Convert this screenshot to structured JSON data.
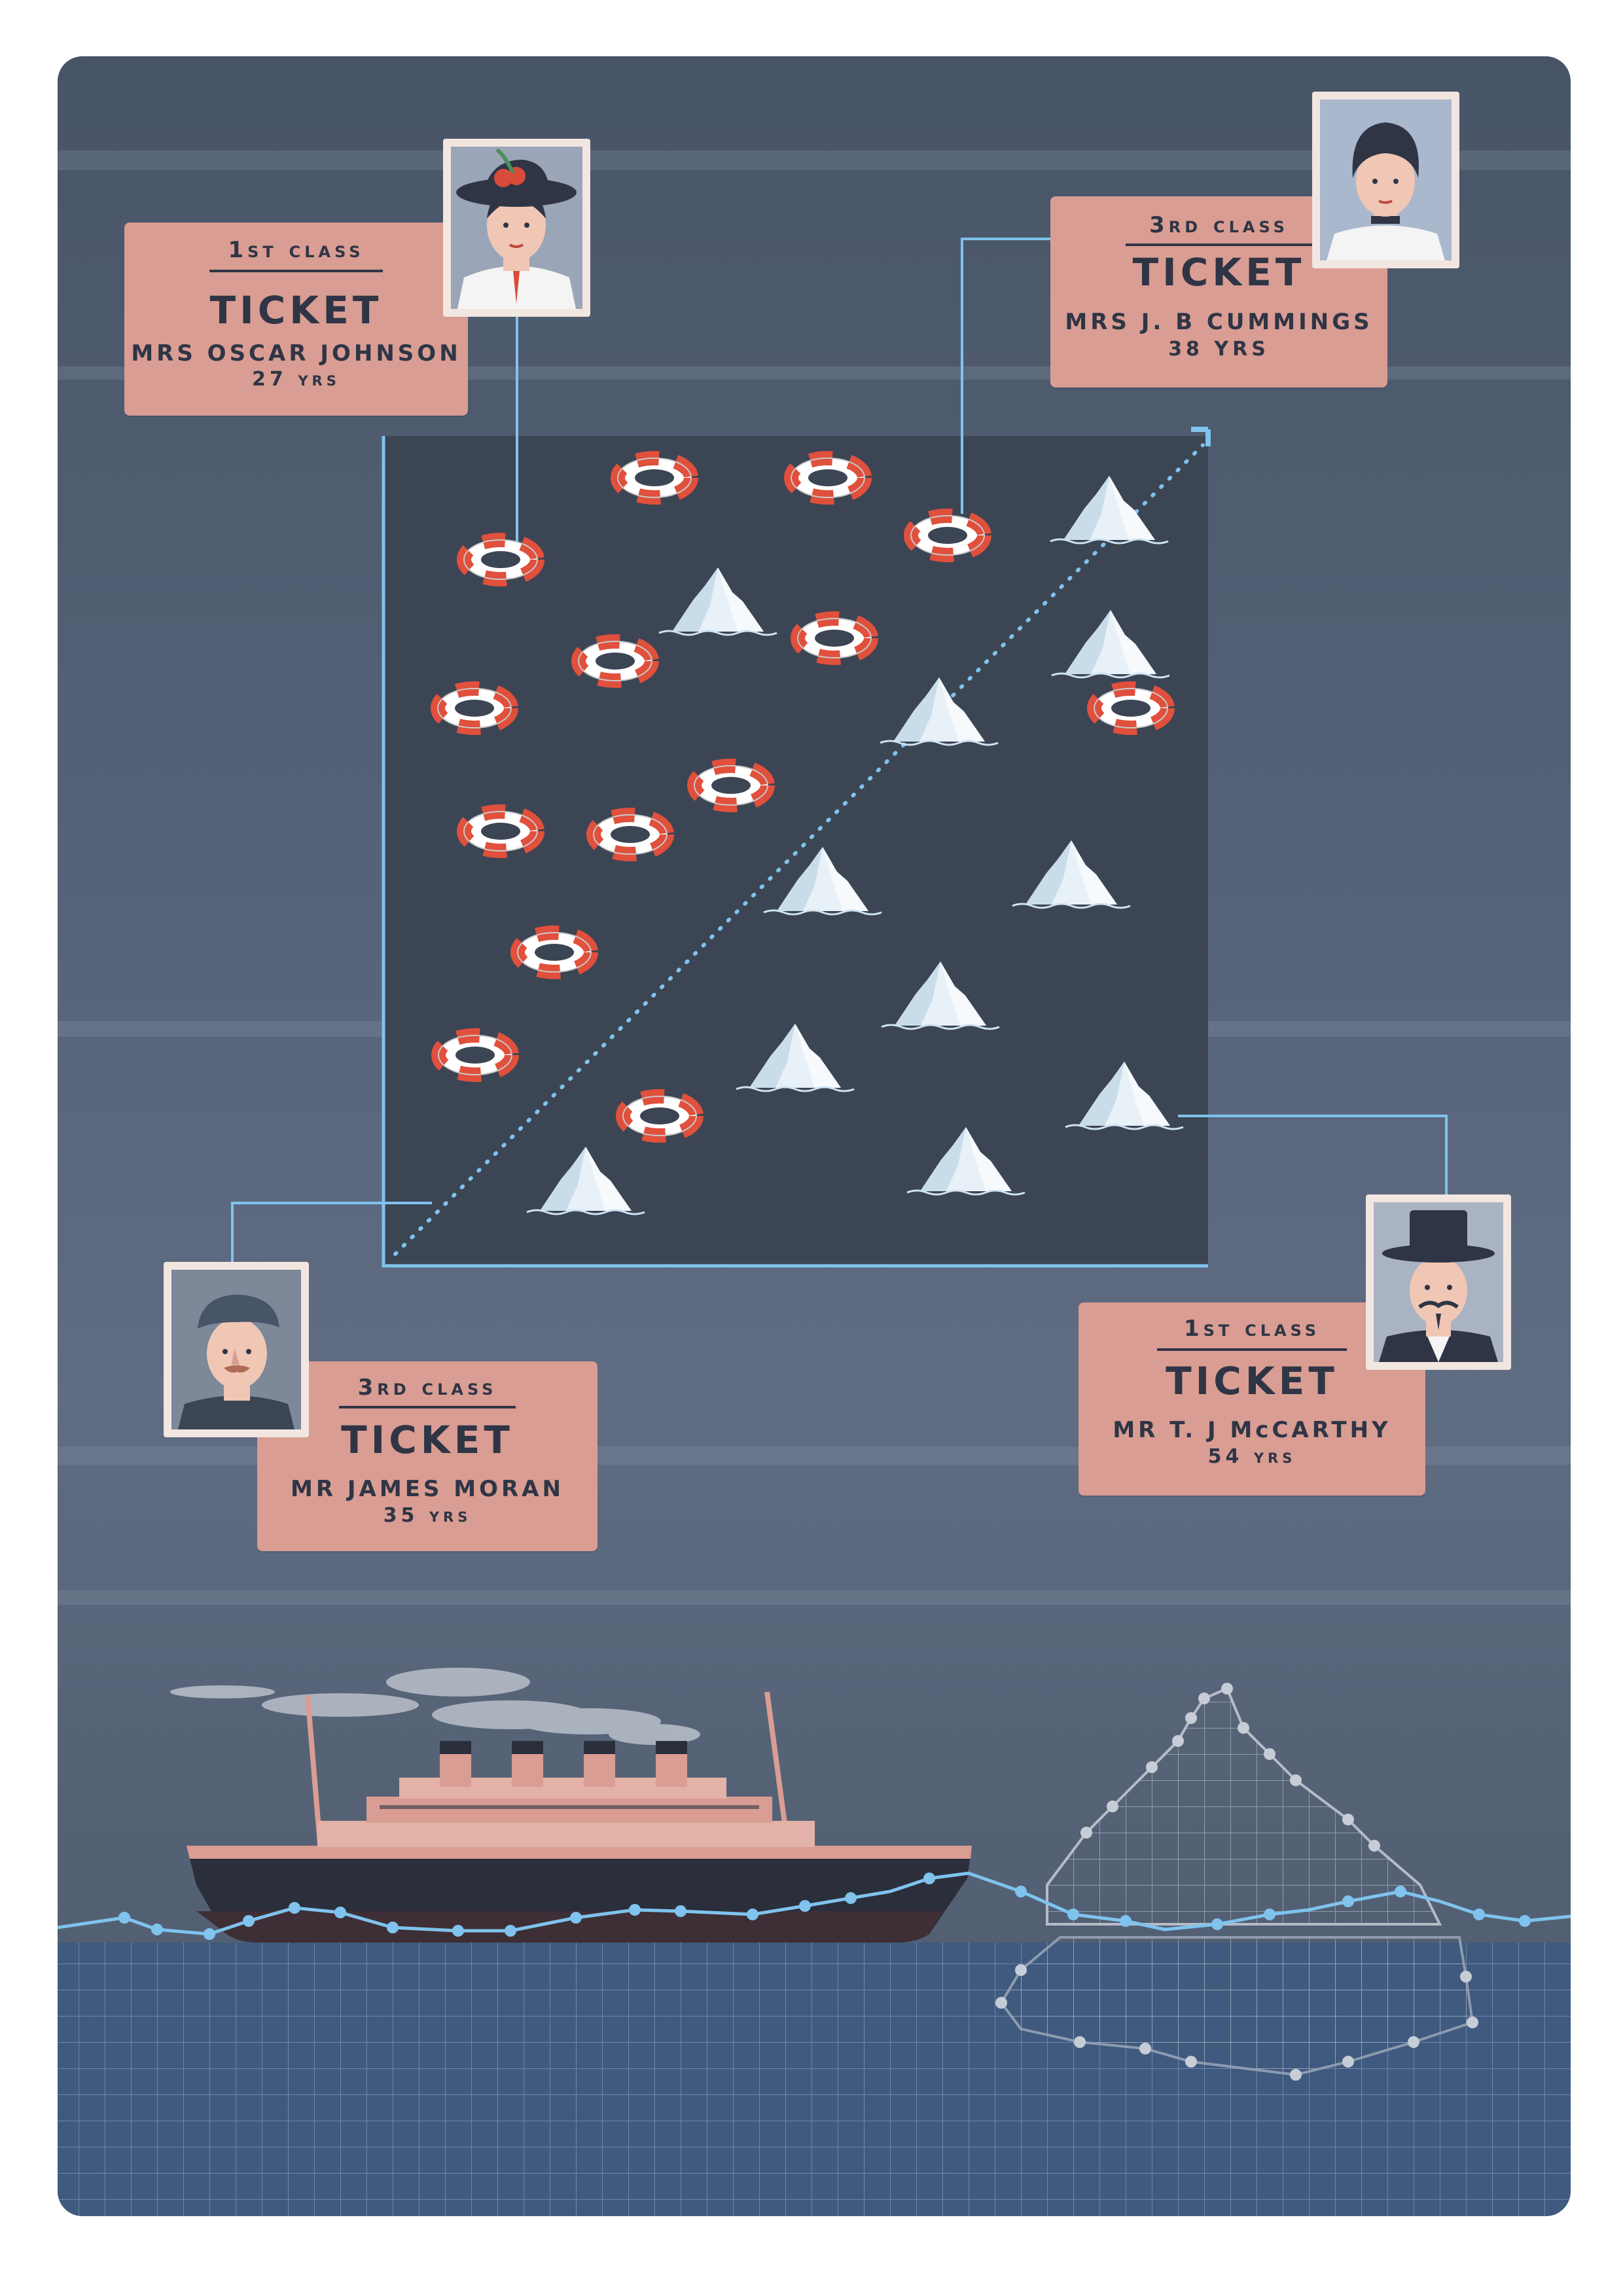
{
  "tickets": [
    {
      "class_label": "1st class",
      "title": "TICKET",
      "name": "MRS OSCAR JOHNSON",
      "age": "27 yrs"
    },
    {
      "class_label": "3rd class",
      "title": "TICKET",
      "name": "MRS J. B CUMMINGS",
      "age": "38 YRS"
    },
    {
      "class_label": "3rd class",
      "title": "TICKET",
      "name": "MR JAMES MORAN",
      "age": "35 yrs"
    },
    {
      "class_label": "1st class",
      "title": "TICKET",
      "name": "MR T. J McCARTHY",
      "age": "54 yrs"
    }
  ],
  "colors": {
    "background": "#56637a",
    "panel": "#3c4554",
    "ticket": "#d99d93",
    "ink": "#2f3545",
    "accent_line": "#7fc3ee",
    "lifebuoy_red": "#e0503c",
    "sea": "#3f5a7e"
  },
  "icons": [
    "lifebuoy-icon",
    "iceberg-icon",
    "ship-icon",
    "portrait-icon"
  ]
}
